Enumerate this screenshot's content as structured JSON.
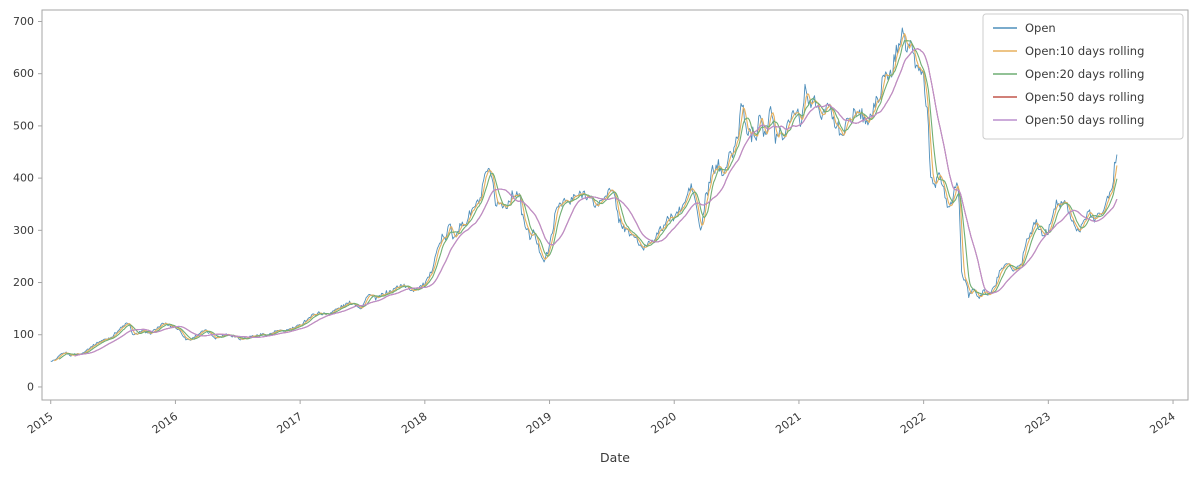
{
  "figure": {
    "background": "#ffffff"
  },
  "chart_data": {
    "type": "line",
    "title": "",
    "xlabel": "Date",
    "ylabel": "",
    "x_ticks": [
      2015,
      2016,
      2017,
      2018,
      2019,
      2020,
      2021,
      2022,
      2023,
      2024
    ],
    "y_ticks": [
      0,
      100,
      200,
      300,
      400,
      500,
      600,
      700
    ],
    "xlim": [
      2014.93,
      2024.12
    ],
    "ylim": [
      -25,
      722
    ],
    "grid": false,
    "legend_position": "upper right",
    "axis_color": "#a6a6a6",
    "tick_label_color": "#3a3a3a",
    "legend_border_color": "#cccccc",
    "legend_text_color": "#3a3a3a",
    "series": [
      {
        "name": "Open",
        "color": "#4f8fbb",
        "width": 0.9,
        "role": "raw"
      },
      {
        "name": "Open:10 days rolling",
        "color": "#e7b05e",
        "width": 1.1,
        "role": "rolling",
        "window_days": 10
      },
      {
        "name": "Open:20 days rolling",
        "color": "#6fae73",
        "width": 1.1,
        "role": "rolling",
        "window_days": 20
      },
      {
        "name": "Open:50 days rolling",
        "color": "#c2574b",
        "width": 1.1,
        "role": "rolling",
        "window_days": 50
      },
      {
        "name": "Open:50 days rolling",
        "color": "#bb8fce",
        "width": 1.1,
        "role": "rolling",
        "window_days": 50
      }
    ],
    "open_keypoints": [
      [
        2015.0,
        49
      ],
      [
        2015.04,
        52
      ],
      [
        2015.08,
        62
      ],
      [
        2015.12,
        66
      ],
      [
        2015.16,
        60
      ],
      [
        2015.2,
        64
      ],
      [
        2015.24,
        62
      ],
      [
        2015.28,
        70
      ],
      [
        2015.32,
        76
      ],
      [
        2015.37,
        84
      ],
      [
        2015.41,
        89
      ],
      [
        2015.45,
        92
      ],
      [
        2015.49,
        96
      ],
      [
        2015.53,
        106
      ],
      [
        2015.57,
        114
      ],
      [
        2015.61,
        122
      ],
      [
        2015.64,
        115
      ],
      [
        2015.66,
        97
      ],
      [
        2015.7,
        104
      ],
      [
        2015.74,
        108
      ],
      [
        2015.78,
        101
      ],
      [
        2015.82,
        106
      ],
      [
        2015.86,
        114
      ],
      [
        2015.91,
        122
      ],
      [
        2015.95,
        118
      ],
      [
        2016.0,
        114
      ],
      [
        2016.04,
        107
      ],
      [
        2016.08,
        92
      ],
      [
        2016.12,
        90
      ],
      [
        2016.16,
        97
      ],
      [
        2016.2,
        104
      ],
      [
        2016.24,
        108
      ],
      [
        2016.28,
        102
      ],
      [
        2016.32,
        94
      ],
      [
        2016.37,
        97
      ],
      [
        2016.41,
        102
      ],
      [
        2016.45,
        98
      ],
      [
        2016.49,
        96
      ],
      [
        2016.53,
        91
      ],
      [
        2016.57,
        95
      ],
      [
        2016.61,
        97
      ],
      [
        2016.66,
        99
      ],
      [
        2016.7,
        101
      ],
      [
        2016.74,
        99
      ],
      [
        2016.78,
        104
      ],
      [
        2016.82,
        108
      ],
      [
        2016.86,
        106
      ],
      [
        2016.91,
        110
      ],
      [
        2016.95,
        113
      ],
      [
        2017.0,
        118
      ],
      [
        2017.04,
        127
      ],
      [
        2017.08,
        134
      ],
      [
        2017.12,
        140
      ],
      [
        2017.16,
        142
      ],
      [
        2017.2,
        139
      ],
      [
        2017.24,
        142
      ],
      [
        2017.28,
        147
      ],
      [
        2017.32,
        152
      ],
      [
        2017.37,
        158
      ],
      [
        2017.41,
        162
      ],
      [
        2017.45,
        158
      ],
      [
        2017.49,
        151
      ],
      [
        2017.52,
        163
      ],
      [
        2017.54,
        178
      ],
      [
        2017.58,
        173
      ],
      [
        2017.62,
        169
      ],
      [
        2017.66,
        177
      ],
      [
        2017.7,
        181
      ],
      [
        2017.74,
        184
      ],
      [
        2017.78,
        192
      ],
      [
        2017.82,
        196
      ],
      [
        2017.86,
        189
      ],
      [
        2017.91,
        186
      ],
      [
        2017.95,
        191
      ],
      [
        2018.0,
        196
      ],
      [
        2018.04,
        212
      ],
      [
        2018.06,
        228
      ],
      [
        2018.08,
        250
      ],
      [
        2018.11,
        268
      ],
      [
        2018.14,
        289
      ],
      [
        2018.16,
        278
      ],
      [
        2018.18,
        298
      ],
      [
        2018.2,
        313
      ],
      [
        2018.22,
        286
      ],
      [
        2018.25,
        297
      ],
      [
        2018.29,
        309
      ],
      [
        2018.33,
        313
      ],
      [
        2018.35,
        327
      ],
      [
        2018.38,
        339
      ],
      [
        2018.42,
        351
      ],
      [
        2018.45,
        361
      ],
      [
        2018.47,
        390
      ],
      [
        2018.49,
        405
      ],
      [
        2018.51,
        417
      ],
      [
        2018.53,
        398
      ],
      [
        2018.55,
        381
      ],
      [
        2018.57,
        347
      ],
      [
        2018.59,
        356
      ],
      [
        2018.62,
        345
      ],
      [
        2018.66,
        349
      ],
      [
        2018.7,
        367
      ],
      [
        2018.74,
        373
      ],
      [
        2018.76,
        363
      ],
      [
        2018.78,
        331
      ],
      [
        2018.8,
        311
      ],
      [
        2018.82,
        302
      ],
      [
        2018.84,
        287
      ],
      [
        2018.87,
        296
      ],
      [
        2018.89,
        285
      ],
      [
        2018.91,
        267
      ],
      [
        2018.93,
        257
      ],
      [
        2018.96,
        241
      ],
      [
        2018.98,
        255
      ],
      [
        2019.0,
        268
      ],
      [
        2019.02,
        296
      ],
      [
        2019.04,
        323
      ],
      [
        2019.06,
        341
      ],
      [
        2019.08,
        353
      ],
      [
        2019.12,
        357
      ],
      [
        2019.16,
        351
      ],
      [
        2019.2,
        365
      ],
      [
        2019.24,
        367
      ],
      [
        2019.28,
        373
      ],
      [
        2019.32,
        361
      ],
      [
        2019.37,
        347
      ],
      [
        2019.41,
        353
      ],
      [
        2019.45,
        371
      ],
      [
        2019.49,
        375
      ],
      [
        2019.53,
        361
      ],
      [
        2019.55,
        324
      ],
      [
        2019.58,
        311
      ],
      [
        2019.62,
        297
      ],
      [
        2019.66,
        291
      ],
      [
        2019.7,
        285
      ],
      [
        2019.72,
        271
      ],
      [
        2019.74,
        262
      ],
      [
        2019.76,
        267
      ],
      [
        2019.78,
        275
      ],
      [
        2019.82,
        281
      ],
      [
        2019.86,
        291
      ],
      [
        2019.91,
        307
      ],
      [
        2019.95,
        321
      ],
      [
        2020.0,
        327
      ],
      [
        2020.04,
        337
      ],
      [
        2020.08,
        349
      ],
      [
        2020.1,
        364
      ],
      [
        2020.13,
        385
      ],
      [
        2020.16,
        369
      ],
      [
        2020.18,
        341
      ],
      [
        2020.21,
        297
      ],
      [
        2020.23,
        321
      ],
      [
        2020.25,
        361
      ],
      [
        2020.27,
        375
      ],
      [
        2020.29,
        397
      ],
      [
        2020.31,
        419
      ],
      [
        2020.33,
        414
      ],
      [
        2020.35,
        427
      ],
      [
        2020.38,
        413
      ],
      [
        2020.41,
        417
      ],
      [
        2020.44,
        439
      ],
      [
        2020.46,
        447
      ],
      [
        2020.48,
        454
      ],
      [
        2020.5,
        474
      ],
      [
        2020.52,
        493
      ],
      [
        2020.53,
        526
      ],
      [
        2020.54,
        561
      ],
      [
        2020.56,
        513
      ],
      [
        2020.58,
        487
      ],
      [
        2020.6,
        495
      ],
      [
        2020.62,
        481
      ],
      [
        2020.64,
        493
      ],
      [
        2020.66,
        481
      ],
      [
        2020.68,
        528
      ],
      [
        2020.7,
        519
      ],
      [
        2020.72,
        485
      ],
      [
        2020.75,
        491
      ],
      [
        2020.77,
        537
      ],
      [
        2020.79,
        509
      ],
      [
        2020.81,
        477
      ],
      [
        2020.83,
        487
      ],
      [
        2020.85,
        491
      ],
      [
        2020.87,
        479
      ],
      [
        2020.9,
        497
      ],
      [
        2020.92,
        507
      ],
      [
        2020.94,
        529
      ],
      [
        2020.96,
        523
      ],
      [
        2020.98,
        531
      ],
      [
        2021.0,
        524
      ],
      [
        2021.02,
        499
      ],
      [
        2021.04,
        559
      ],
      [
        2021.06,
        575
      ],
      [
        2021.08,
        549
      ],
      [
        2021.1,
        539
      ],
      [
        2021.12,
        547
      ],
      [
        2021.15,
        537
      ],
      [
        2021.17,
        521
      ],
      [
        2021.19,
        512
      ],
      [
        2021.21,
        535
      ],
      [
        2021.23,
        547
      ],
      [
        2021.25,
        553
      ],
      [
        2021.27,
        509
      ],
      [
        2021.29,
        501
      ],
      [
        2021.33,
        493
      ],
      [
        2021.35,
        487
      ],
      [
        2021.38,
        501
      ],
      [
        2021.41,
        511
      ],
      [
        2021.44,
        527
      ],
      [
        2021.46,
        532
      ],
      [
        2021.48,
        517
      ],
      [
        2021.5,
        529
      ],
      [
        2021.52,
        515
      ],
      [
        2021.54,
        511
      ],
      [
        2021.56,
        507
      ],
      [
        2021.58,
        521
      ],
      [
        2021.62,
        545
      ],
      [
        2021.65,
        565
      ],
      [
        2021.67,
        581
      ],
      [
        2021.69,
        589
      ],
      [
        2021.71,
        605
      ],
      [
        2021.73,
        591
      ],
      [
        2021.75,
        609
      ],
      [
        2021.77,
        631
      ],
      [
        2021.79,
        651
      ],
      [
        2021.81,
        671
      ],
      [
        2021.83,
        692
      ],
      [
        2021.85,
        663
      ],
      [
        2021.87,
        641
      ],
      [
        2021.89,
        661
      ],
      [
        2021.92,
        627
      ],
      [
        2021.94,
        611
      ],
      [
        2021.96,
        615
      ],
      [
        2021.98,
        601
      ],
      [
        2022.0,
        597
      ],
      [
        2022.02,
        539
      ],
      [
        2022.04,
        507
      ],
      [
        2022.05,
        429
      ],
      [
        2022.06,
        399
      ],
      [
        2022.08,
        383
      ],
      [
        2022.1,
        391
      ],
      [
        2022.12,
        403
      ],
      [
        2022.15,
        389
      ],
      [
        2022.17,
        369
      ],
      [
        2022.19,
        351
      ],
      [
        2022.21,
        341
      ],
      [
        2022.23,
        357
      ],
      [
        2022.25,
        377
      ],
      [
        2022.27,
        389
      ],
      [
        2022.29,
        347
      ],
      [
        2022.3,
        226
      ],
      [
        2022.31,
        217
      ],
      [
        2022.33,
        203
      ],
      [
        2022.35,
        189
      ],
      [
        2022.36,
        174
      ],
      [
        2022.38,
        181
      ],
      [
        2022.4,
        187
      ],
      [
        2022.42,
        177
      ],
      [
        2022.44,
        169
      ],
      [
        2022.46,
        175
      ],
      [
        2022.48,
        185
      ],
      [
        2022.5,
        181
      ],
      [
        2022.52,
        175
      ],
      [
        2022.54,
        183
      ],
      [
        2022.56,
        189
      ],
      [
        2022.58,
        197
      ],
      [
        2022.6,
        215
      ],
      [
        2022.62,
        223
      ],
      [
        2022.65,
        235
      ],
      [
        2022.67,
        243
      ],
      [
        2022.69,
        231
      ],
      [
        2022.71,
        225
      ],
      [
        2022.73,
        221
      ],
      [
        2022.75,
        231
      ],
      [
        2022.77,
        239
      ],
      [
        2022.79,
        235
      ],
      [
        2022.81,
        271
      ],
      [
        2022.83,
        283
      ],
      [
        2022.85,
        291
      ],
      [
        2022.87,
        303
      ],
      [
        2022.9,
        315
      ],
      [
        2022.92,
        307
      ],
      [
        2022.94,
        297
      ],
      [
        2022.96,
        291
      ],
      [
        2022.98,
        295
      ],
      [
        2023.0,
        299
      ],
      [
        2023.02,
        315
      ],
      [
        2023.04,
        337
      ],
      [
        2023.06,
        351
      ],
      [
        2023.08,
        347
      ],
      [
        2023.1,
        355
      ],
      [
        2023.12,
        363
      ],
      [
        2023.15,
        347
      ],
      [
        2023.17,
        331
      ],
      [
        2023.19,
        323
      ],
      [
        2023.21,
        309
      ],
      [
        2023.23,
        301
      ],
      [
        2023.25,
        297
      ],
      [
        2023.27,
        307
      ],
      [
        2023.29,
        319
      ],
      [
        2023.31,
        327
      ],
      [
        2023.33,
        335
      ],
      [
        2023.35,
        329
      ],
      [
        2023.38,
        321
      ],
      [
        2023.4,
        329
      ],
      [
        2023.42,
        335
      ],
      [
        2023.44,
        341
      ],
      [
        2023.46,
        349
      ],
      [
        2023.48,
        363
      ],
      [
        2023.5,
        377
      ],
      [
        2023.52,
        395
      ],
      [
        2023.53,
        419
      ],
      [
        2023.54,
        437
      ],
      [
        2023.55,
        448
      ]
    ]
  }
}
